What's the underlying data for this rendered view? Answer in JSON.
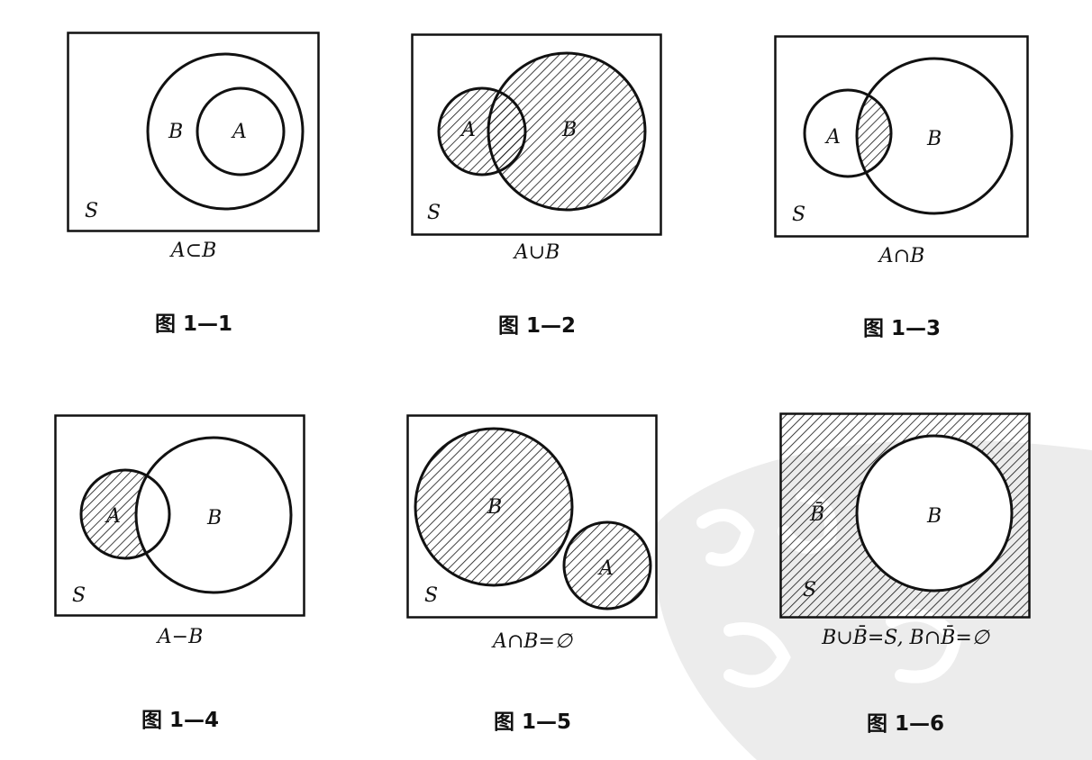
{
  "figures": [
    {
      "id": "1-1",
      "universe_label": "S",
      "labels": {
        "A": "A",
        "B": "B"
      },
      "caption": "A⊂B",
      "figure_number": "图 1—1"
    },
    {
      "id": "1-2",
      "universe_label": "S",
      "labels": {
        "A": "A",
        "B": "B"
      },
      "caption": "A∪B",
      "figure_number": "图 1—2"
    },
    {
      "id": "1-3",
      "universe_label": "S",
      "labels": {
        "A": "A",
        "B": "B"
      },
      "caption": "A∩B",
      "figure_number": "图 1—3"
    },
    {
      "id": "1-4",
      "universe_label": "S",
      "labels": {
        "A": "A",
        "B": "B"
      },
      "caption": "A−B",
      "figure_number": "图 1—4"
    },
    {
      "id": "1-5",
      "universe_label": "S",
      "labels": {
        "A": "A",
        "B": "B"
      },
      "caption": "A∩B=∅",
      "figure_number": "图 1—5"
    },
    {
      "id": "1-6",
      "universe_label": "S",
      "labels": {
        "B": "B",
        "B_complement": "B̄"
      },
      "caption": "B∪B̄=S, B∩B̄=∅",
      "figure_number": "图 1—6"
    }
  ],
  "colors": {
    "ink": "#111111",
    "hatch": "#111111",
    "watermark": "#e9e9e9"
  }
}
